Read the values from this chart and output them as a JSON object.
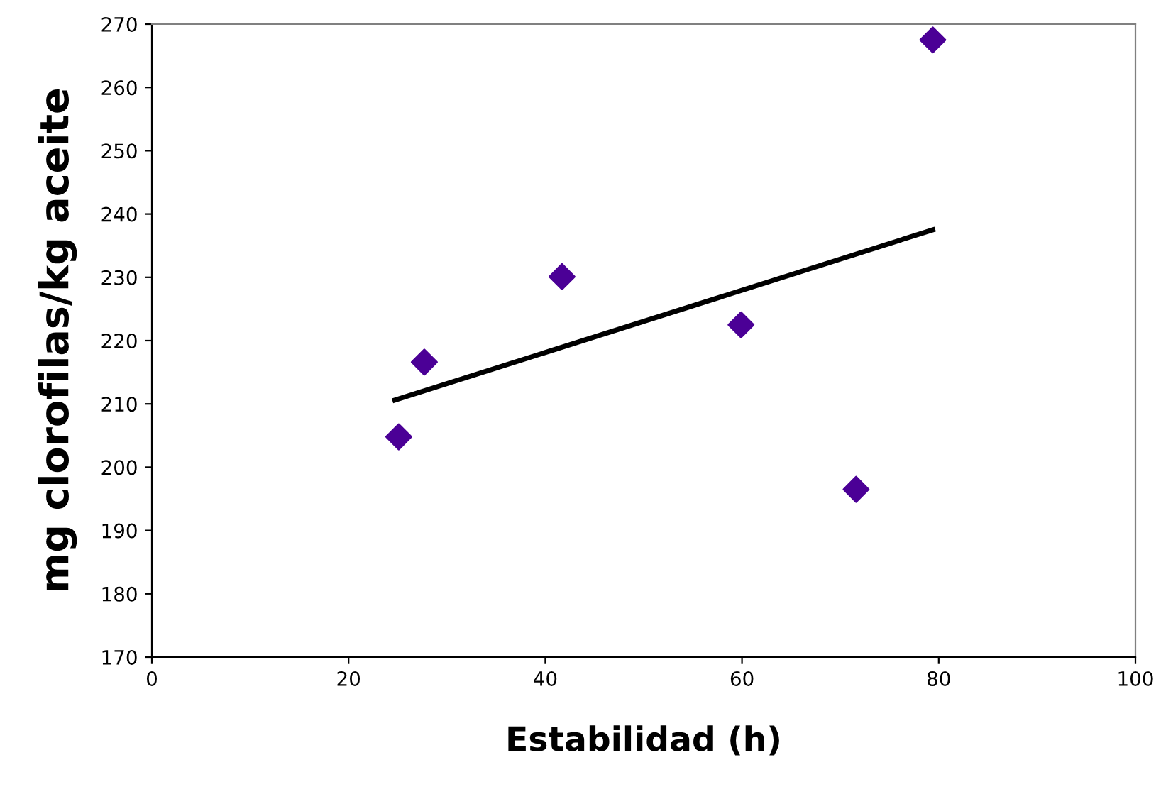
{
  "chart_data": {
    "type": "scatter",
    "xlabel": "Estabilidad (h)",
    "ylabel": "mg clorofilas/kg aceite",
    "xlim": [
      0,
      100
    ],
    "ylim": [
      170,
      270
    ],
    "xticks": [
      0,
      20,
      40,
      60,
      80,
      100
    ],
    "yticks": [
      170,
      180,
      190,
      200,
      210,
      220,
      230,
      240,
      250,
      260,
      270
    ],
    "grid": false,
    "legend": false,
    "series": [
      {
        "marker": "diamond",
        "color": "#4b0096",
        "x": [
          25.1,
          27.7,
          41.7,
          59.9,
          71.6,
          79.4
        ],
        "values": [
          204.8,
          216.6,
          230.1,
          222.5,
          196.5,
          267.5
        ]
      },
      {
        "type": "line",
        "color": "#000000",
        "line_style": "solid",
        "x": [
          24.7,
          79.4
        ],
        "values": [
          210.6,
          237.5
        ]
      }
    ]
  }
}
